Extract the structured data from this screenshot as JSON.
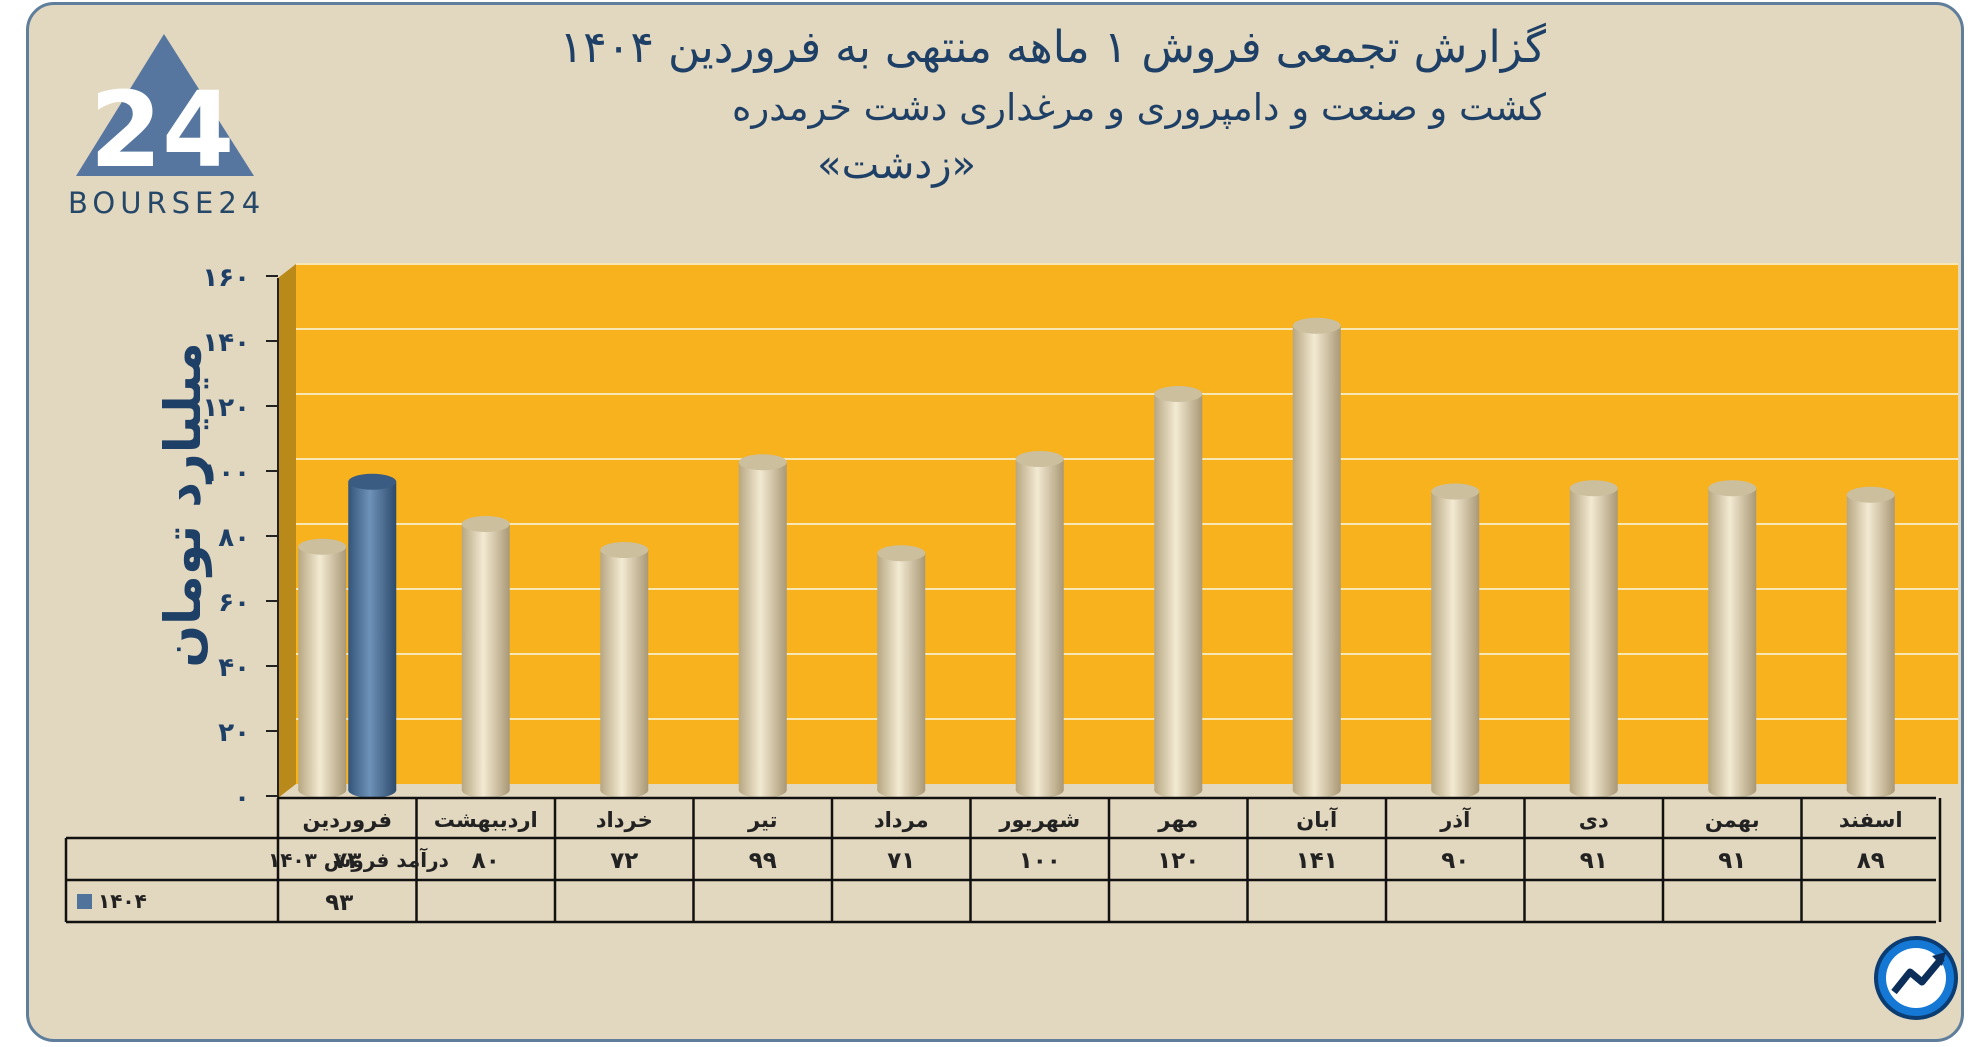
{
  "header": {
    "title": "گزارش تجمعی فروش ۱ ماهه منتهی به فروردین ۱۴۰۴",
    "subtitle": "کشت و صنعت و دامپروری و مرغداری دشت خرمدره",
    "company": "«زدشت»"
  },
  "logo": {
    "text": "BOURSE24",
    "mark": "24",
    "badge_icon": "chart-arrow-icon"
  },
  "colors": {
    "background": "#e2d7bf",
    "plot_area": "#f7b21e",
    "bar_1403": "#e6d9b5",
    "bar_1404": "#4f739b",
    "title": "#1e3f66"
  },
  "chart_data": {
    "type": "bar",
    "ylabel": "میلیارد تومان",
    "ylim": [
      0,
      160
    ],
    "yticks": [
      "۰",
      "۲۰",
      "۴۰",
      "۶۰",
      "۸۰",
      "۱۰۰",
      "۱۲۰",
      "۱۴۰",
      "۱۶۰"
    ],
    "categories": [
      "فروردین",
      "اردیبهشت",
      "خرداد",
      "تیر",
      "مرداد",
      "شهریور",
      "مهر",
      "آبان",
      "آذر",
      "دی",
      "بهمن",
      "اسفند"
    ],
    "grid": true,
    "series": [
      {
        "name": "درآمد فروش ۱۴۰۳",
        "values": [
          73,
          80,
          72,
          99,
          71,
          100,
          120,
          141,
          90,
          91,
          91,
          89
        ],
        "labels": [
          "۷۳",
          "۸۰",
          "۷۲",
          "۹۹",
          "۷۱",
          "۱۰۰",
          "۱۲۰",
          "۱۴۱",
          "۹۰",
          "۹۱",
          "۹۱",
          "۸۹"
        ]
      },
      {
        "name": "۱۴۰۴",
        "values": [
          93,
          null,
          null,
          null,
          null,
          null,
          null,
          null,
          null,
          null,
          null,
          null
        ],
        "labels": [
          "۹۳",
          "",
          "",
          "",
          "",
          "",
          "",
          "",
          "",
          "",
          "",
          ""
        ]
      }
    ]
  }
}
